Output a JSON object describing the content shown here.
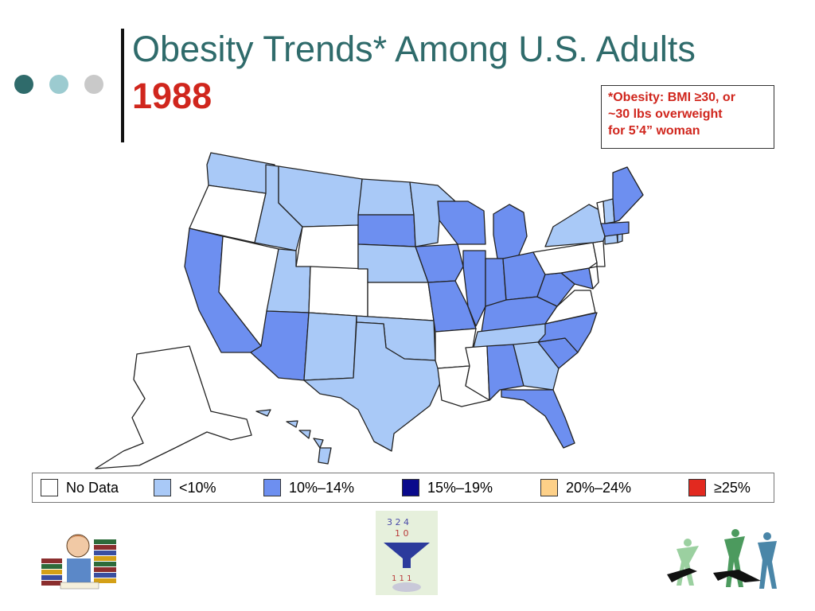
{
  "slide": {
    "title": "Obesity Trends* Among U.S. Adults",
    "year": "1988",
    "footnote_lines": [
      "*Obesity: BMI ≥30, or",
      "~30 lbs overweight",
      "for 5’4” woman"
    ]
  },
  "colors": {
    "title": "#2f6b6b",
    "accent_red": "#d0261d",
    "dot_dark": "#2f6b6b",
    "dot_mid": "#9ccbd0",
    "dot_light": "#c9c9c9",
    "no_data": "#ffffff",
    "lt10": "#a9c9f7",
    "10_14": "#6d8ff0",
    "15_19": "#0a0a8c",
    "20_24": "#fdd088",
    "gte25": "#e2291f"
  },
  "legend": [
    {
      "label": "No Data",
      "color": "#ffffff"
    },
    {
      "label": "<10%",
      "color": "#a9c9f7"
    },
    {
      "label": "10%–14%",
      "color": "#6d8ff0"
    },
    {
      "label": "15%–19%",
      "color": "#0a0a8c"
    },
    {
      "label": "20%–24%",
      "color": "#fdd088"
    },
    {
      "label": "≥25%",
      "color": "#e2291f"
    }
  ],
  "map_data": {
    "categories": {
      "none": "No Data",
      "low": "<10%",
      "mid": "10%–14%"
    },
    "states": {
      "WA": "low",
      "OR": "none",
      "CA": "mid",
      "NV": "none",
      "ID": "low",
      "MT": "low",
      "WY": "none",
      "UT": "low",
      "AZ": "mid",
      "CO": "none",
      "NM": "low",
      "ND": "low",
      "SD": "mid",
      "NE": "low",
      "KS": "none",
      "OK": "low",
      "TX": "low",
      "MN": "low",
      "IA": "mid",
      "MO": "mid",
      "AR": "none",
      "LA": "none",
      "WI": "mid",
      "IL": "mid",
      "MI": "mid",
      "IN": "mid",
      "OH": "mid",
      "KY": "mid",
      "TN": "low",
      "MS": "none",
      "AL": "mid",
      "GA": "low",
      "FL": "mid",
      "SC": "mid",
      "NC": "mid",
      "VA": "none",
      "WV": "mid",
      "MD": "mid",
      "DE": "none",
      "NJ": "none",
      "PA": "none",
      "NY": "low",
      "CT": "low",
      "RI": "low",
      "MA": "mid",
      "VT": "none",
      "NH": "low",
      "ME": "mid",
      "AK": "none",
      "HI": "low"
    }
  },
  "images": {
    "left": "reader-with-books",
    "center": "funnel-of-numbers",
    "right": "dancers-silhouettes"
  }
}
